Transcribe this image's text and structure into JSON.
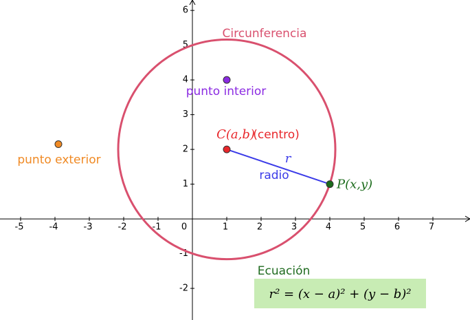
{
  "axes": {
    "xlim": [
      -5.6,
      8.08
    ],
    "ylim": [
      -2.91,
      6.3
    ],
    "xticks": [
      -5,
      -4,
      -3,
      -2,
      -1,
      0,
      1,
      2,
      3,
      4,
      5,
      6,
      7
    ],
    "yticks": [
      -2,
      -1,
      1,
      2,
      3,
      4,
      5,
      6
    ]
  },
  "circle": {
    "label": "Circunferencia",
    "center": [
      1,
      2
    ],
    "radius": 3.16,
    "color": "#d9506e"
  },
  "segment": {
    "label": "r",
    "caption": "radio",
    "color": "#3b3be8"
  },
  "points": [
    {
      "label": "C(a,b)",
      "note": "(centro)",
      "x": 1,
      "y": 2,
      "color": "#e8272b"
    },
    {
      "label": "P(x,y)",
      "x": 4,
      "y": 1,
      "color": "#1b6b1b"
    },
    {
      "label": "punto interior",
      "x": 1,
      "y": 4,
      "color": "#8b2be2"
    },
    {
      "label": "punto exterior",
      "x": -3.9,
      "y": 2.15,
      "color": "#f08a24"
    }
  ],
  "equation": {
    "title": "Ecuación",
    "formula": "r² = (x − a)² + (y − b)²"
  }
}
